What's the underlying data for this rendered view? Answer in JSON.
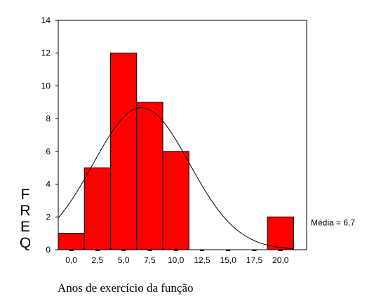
{
  "chart_data": {
    "type": "bar",
    "title": "",
    "xlabel": "Anos de exercício da função",
    "ylabel": "FREQ",
    "bins": [
      {
        "start": -1.25,
        "end": 1.25,
        "value": 1
      },
      {
        "start": 1.25,
        "end": 3.75,
        "value": 5
      },
      {
        "start": 3.75,
        "end": 6.25,
        "value": 12
      },
      {
        "start": 6.25,
        "end": 8.75,
        "value": 9
      },
      {
        "start": 8.75,
        "end": 11.25,
        "value": 6
      },
      {
        "start": 18.75,
        "end": 21.25,
        "value": 2
      }
    ],
    "x_ticks": [
      0,
      2.5,
      5,
      7.5,
      10,
      12.5,
      15,
      17.5,
      20
    ],
    "x_tick_labels": [
      "0,0",
      "2,5",
      "5,0",
      "7,5",
      "10,0",
      "12,5",
      "15,0",
      "17,5",
      "20,0"
    ],
    "y_ticks": [
      0,
      2,
      4,
      6,
      8,
      10,
      12,
      14
    ],
    "y_tick_labels": [
      "0",
      "2",
      "4",
      "6",
      "8",
      "10",
      "12",
      "14"
    ],
    "xlim": [
      -1.25,
      22.5
    ],
    "ylim": [
      0,
      14
    ],
    "normal_curve": {
      "mean": 6.7,
      "sd": 4.6,
      "peak": 8.67
    },
    "annotation": "Média = 6,7",
    "grid": false,
    "bar_color": "#ff0000",
    "bar_edge_color": "#000000"
  }
}
